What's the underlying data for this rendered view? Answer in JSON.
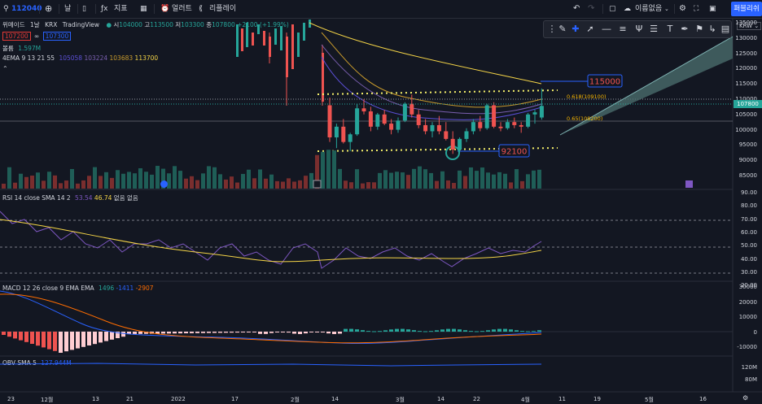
{
  "toolbar": {
    "symbol": "112040",
    "interval": "날",
    "indicators_label": "지표",
    "alerts_label": "얼러트",
    "replay_label": "리플레이",
    "layout_name": "이름없음",
    "publish_label": "퍼블리쉬"
  },
  "legend": {
    "name": "위메이드",
    "interval": "1날",
    "exchange": "KRX",
    "source": "TradingView",
    "open_label": "시",
    "open": "104000",
    "high_label": "고",
    "high": "113500",
    "low_label": "저",
    "low": "103300",
    "close_label": "종",
    "close": "107800",
    "change": "+2100 (+1.99%)",
    "bid": "107200",
    "ask": "107300",
    "volume_label": "볼륨",
    "volume": "1.597M",
    "ema_label": "4EMA 9 13 21 55",
    "ema_values": [
      "105058",
      "103224",
      "103683",
      "113700"
    ],
    "rsi_label": "RSI 14 close SMA 14 2",
    "rsi_value": "53.54",
    "rsi_sma": "46.74",
    "rsi_extra": "없음 없음",
    "macd_label": "MACD 12 26 close 9 EMA EMA",
    "macd_hist": "1496",
    "macd_line": "-1411",
    "macd_signal": "-2907",
    "obv_label": "OBV SMA 5",
    "obv_value": "127.944M",
    "currency": "KRW"
  },
  "annotations": {
    "resistance": "115000",
    "support": "92100",
    "fib1": "0.618(109100)",
    "fib2": "0.65(108200)",
    "last_price": "107800"
  },
  "price_axis": [
    "135000",
    "130000",
    "125000",
    "120000",
    "115000",
    "110000",
    "105000",
    "100000",
    "95000",
    "90000",
    "85000"
  ],
  "rsi_axis": [
    "90.00",
    "80.00",
    "70.00",
    "60.00",
    "50.00",
    "40.00",
    "30.00",
    "20.00"
  ],
  "macd_axis": [
    "30000",
    "20000",
    "10000",
    "0",
    "-10000"
  ],
  "obv_axis": [
    "120M",
    "80M"
  ],
  "time_axis": [
    "23",
    "12월",
    "13",
    "21",
    "2022",
    "17",
    "2월",
    "14",
    "3월",
    "14",
    "22",
    "4월",
    "11",
    "19",
    "5월",
    "16"
  ],
  "chart_data": {
    "type": "candlestick",
    "title": "위메이드 · 1날 · KRX",
    "candles": [
      {
        "o": 108000,
        "h": 110500,
        "l": 96000,
        "c": 97500
      },
      {
        "o": 97500,
        "h": 102000,
        "l": 94000,
        "c": 101000
      },
      {
        "o": 101000,
        "h": 103500,
        "l": 95500,
        "c": 96000
      },
      {
        "o": 96000,
        "h": 99000,
        "l": 93000,
        "c": 98500
      },
      {
        "o": 98500,
        "h": 108500,
        "l": 98000,
        "c": 107000
      },
      {
        "o": 107000,
        "h": 110000,
        "l": 105000,
        "c": 106000
      },
      {
        "o": 106000,
        "h": 107500,
        "l": 99500,
        "c": 101000
      },
      {
        "o": 101000,
        "h": 105500,
        "l": 100000,
        "c": 105000
      },
      {
        "o": 105000,
        "h": 106500,
        "l": 101500,
        "c": 102000
      },
      {
        "o": 102000,
        "h": 103500,
        "l": 98500,
        "c": 100000
      },
      {
        "o": 100000,
        "h": 104000,
        "l": 99000,
        "c": 103000
      },
      {
        "o": 103000,
        "h": 109000,
        "l": 102500,
        "c": 108500
      },
      {
        "o": 108500,
        "h": 111500,
        "l": 104000,
        "c": 105000
      },
      {
        "o": 105000,
        "h": 106500,
        "l": 100500,
        "c": 101500
      },
      {
        "o": 101500,
        "h": 103500,
        "l": 98500,
        "c": 99500
      },
      {
        "o": 99500,
        "h": 102500,
        "l": 97500,
        "c": 101500
      },
      {
        "o": 101500,
        "h": 104500,
        "l": 98500,
        "c": 99500
      },
      {
        "o": 99500,
        "h": 102500,
        "l": 96500,
        "c": 97000
      },
      {
        "o": 97000,
        "h": 99500,
        "l": 92100,
        "c": 93500
      },
      {
        "o": 93500,
        "h": 97500,
        "l": 92500,
        "c": 97000
      },
      {
        "o": 97000,
        "h": 100500,
        "l": 96000,
        "c": 99500
      },
      {
        "o": 99500,
        "h": 103500,
        "l": 98500,
        "c": 102500
      },
      {
        "o": 102500,
        "h": 104500,
        "l": 99500,
        "c": 100500
      },
      {
        "o": 100500,
        "h": 108500,
        "l": 100000,
        "c": 108000
      },
      {
        "o": 108000,
        "h": 109000,
        "l": 100500,
        "c": 101000
      },
      {
        "o": 101000,
        "h": 102500,
        "l": 99500,
        "c": 100500
      },
      {
        "o": 100500,
        "h": 103500,
        "l": 100000,
        "c": 102500
      },
      {
        "o": 102500,
        "h": 104000,
        "l": 100500,
        "c": 101500
      },
      {
        "o": 101500,
        "h": 102500,
        "l": 99000,
        "c": 101000
      },
      {
        "o": 101000,
        "h": 105500,
        "l": 100500,
        "c": 105000
      },
      {
        "o": 105000,
        "h": 106500,
        "l": 102000,
        "c": 105700
      },
      {
        "o": 104000,
        "h": 113500,
        "l": 103300,
        "c": 107800
      }
    ]
  }
}
